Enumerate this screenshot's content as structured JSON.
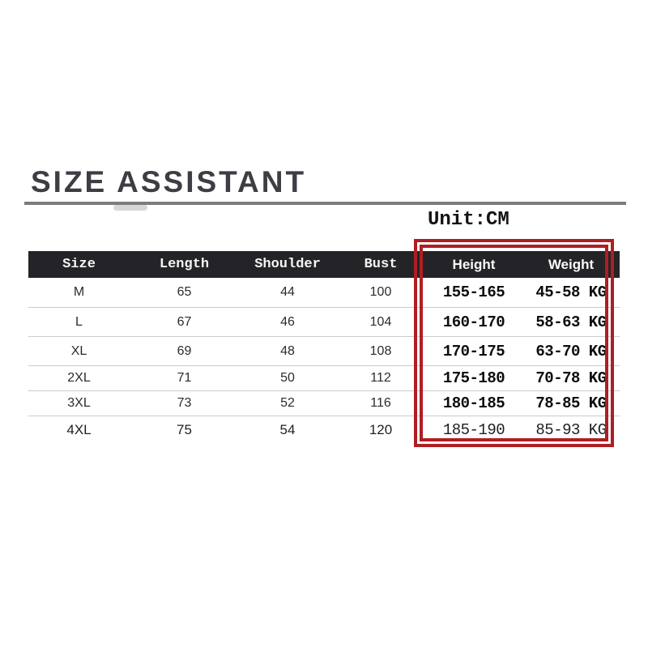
{
  "page": {
    "background_color": "#ffffff",
    "title": "SIZE ASSISTANT",
    "unit_label": "Unit:CM"
  },
  "table": {
    "columns": [
      "Size",
      "Length",
      "Shoulder",
      "Bust",
      "Height",
      "Weight"
    ],
    "rows": [
      [
        "M",
        "65",
        "44",
        "100",
        "155-165",
        "45-58 KG"
      ],
      [
        "L",
        "67",
        "46",
        "104",
        "160-170",
        "58-63 KG"
      ],
      [
        "XL",
        "69",
        "48",
        "108",
        "170-175",
        "63-70 KG"
      ],
      [
        "2XL",
        "71",
        "50",
        "112",
        "175-180",
        "70-78 KG"
      ],
      [
        "3XL",
        "73",
        "52",
        "116",
        "180-185",
        "78-85 KG"
      ],
      [
        "4XL",
        "75",
        "54",
        "120",
        "185-190",
        "85-93 KG"
      ]
    ],
    "header_background": "#242428",
    "divider_color": "#cbcbcb"
  },
  "highlight": {
    "description": "red double-line rectangle around Height and Weight columns",
    "color": "#ad1f23"
  },
  "colors": {
    "title_text": "#3d3d44",
    "title_rule": "#7c7c7c",
    "body_text": "#2c2c2e",
    "highlight_text": "#0c0c0c"
  },
  "chart_data": {
    "type": "table",
    "title": "SIZE ASSISTANT",
    "unit": "CM",
    "columns": [
      "Size",
      "Length",
      "Shoulder",
      "Bust",
      "Height",
      "Weight"
    ],
    "rows": [
      {
        "size": "M",
        "length": 65,
        "shoulder": 44,
        "bust": 100,
        "height": "155-165",
        "weight": "45-58 KG"
      },
      {
        "size": "L",
        "length": 67,
        "shoulder": 46,
        "bust": 104,
        "height": "160-170",
        "weight": "58-63 KG"
      },
      {
        "size": "XL",
        "length": 69,
        "shoulder": 48,
        "bust": 108,
        "height": "170-175",
        "weight": "63-70 KG"
      },
      {
        "size": "2XL",
        "length": 71,
        "shoulder": 50,
        "bust": 112,
        "height": "175-180",
        "weight": "70-78 KG"
      },
      {
        "size": "3XL",
        "length": 73,
        "shoulder": 52,
        "bust": 116,
        "height": "180-185",
        "weight": "78-85 KG"
      },
      {
        "size": "4XL",
        "length": 75,
        "shoulder": 54,
        "bust": 120,
        "height": "185-190",
        "weight": "85-93 KG"
      }
    ],
    "annotations": [
      "Height and Weight columns outlined with a red double border"
    ],
    "legend_position": "none",
    "grid": "row-dividers"
  }
}
